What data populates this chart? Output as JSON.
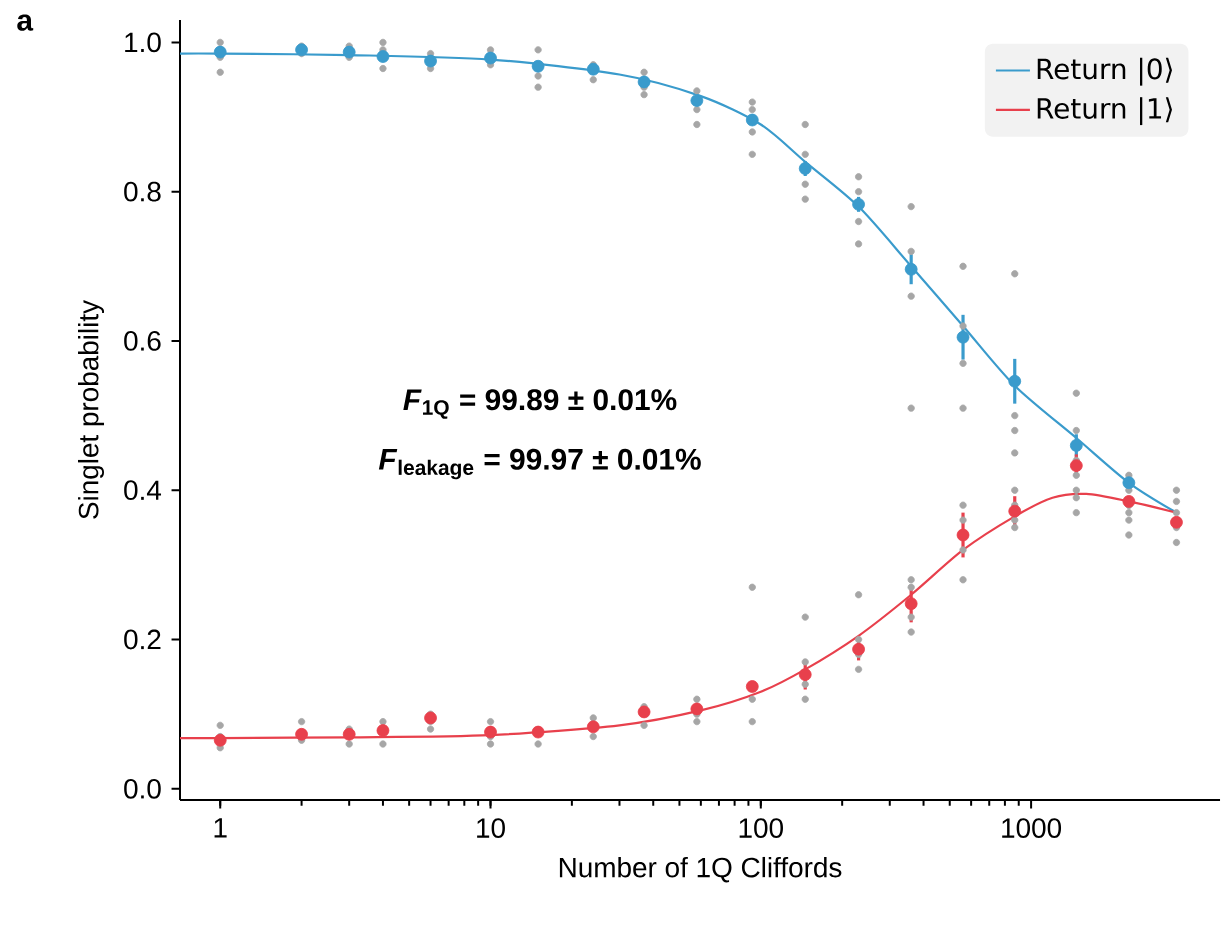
{
  "chart_data": {
    "type": "scatter",
    "xlabel": "Number of 1Q Cliffords",
    "ylabel": "Singlet probability",
    "annotations": [
      "a",
      "*F*$_{1Q}$ = 99.89 ± 0.01%",
      "*F*$_{leakage}$ = 99.97 ± 0.01%"
    ],
    "log": "x",
    "xlim": [
      0.71,
      5000
    ],
    "xticks": [
      1,
      10,
      100,
      1000
    ],
    "ylim": [
      -0.015,
      1.03
    ],
    "yticks": [
      {
        "value": 0,
        "label": "0.0"
      },
      {
        "value": 0.2,
        "label": "0.2"
      },
      {
        "value": 0.4,
        "label": "0.4"
      },
      {
        "value": 0.6,
        "label": "0.6"
      },
      {
        "value": 0.8,
        "label": "0.8"
      },
      {
        "value": 1.0,
        "label": "1.0"
      }
    ],
    "legend": "top right",
    "series": [
      {
        "color": "#a6a6a6",
        "marker": "circle",
        "x": [
          1,
          1,
          1,
          2,
          2,
          3,
          3,
          4,
          4,
          6,
          6,
          6,
          10,
          10,
          10,
          15,
          24,
          24,
          37,
          37,
          58,
          58,
          58,
          93,
          93,
          93,
          146,
          146,
          146,
          146,
          230,
          230,
          230,
          230,
          360,
          360,
          360,
          360,
          560,
          560,
          560,
          560,
          870,
          870,
          870,
          870,
          1470,
          1470,
          1470,
          2300,
          2300,
          2300,
          3450,
          3450,
          3450,
          3450,
          3450,
          1,
          1,
          1,
          2,
          2,
          3,
          3,
          4,
          4,
          4,
          6,
          6,
          10,
          10,
          15,
          15,
          15,
          24,
          24,
          37,
          37,
          37,
          58,
          58,
          58,
          93,
          93,
          93,
          93,
          146,
          146,
          146,
          146,
          230,
          230,
          230,
          230,
          360,
          360,
          360,
          360,
          560,
          560,
          560,
          560,
          870,
          870,
          870,
          870,
          1470,
          1470,
          1470,
          1470,
          2300,
          2300,
          2300,
          2300
        ],
        "values": [
          0.055,
          0.07,
          0.085,
          0.065,
          0.09,
          0.06,
          0.08,
          0.06,
          0.09,
          0.08,
          0.09,
          0.1,
          0.06,
          0.07,
          0.09,
          0.06,
          0.07,
          0.095,
          0.085,
          0.11,
          0.09,
          0.1,
          0.12,
          0.09,
          0.12,
          0.27,
          0.12,
          0.14,
          0.17,
          0.23,
          0.16,
          0.18,
          0.2,
          0.26,
          0.21,
          0.23,
          0.27,
          0.28,
          0.28,
          0.32,
          0.36,
          0.38,
          0.35,
          0.36,
          0.38,
          0.4,
          0.37,
          0.39,
          0.4,
          0.34,
          0.37,
          0.38,
          0.33,
          0.35,
          0.37,
          0.385,
          0.4,
          0.96,
          0.98,
          1.0,
          0.985,
          0.995,
          0.98,
          0.995,
          0.965,
          0.99,
          1.0,
          0.965,
          0.985,
          0.97,
          0.99,
          0.94,
          0.955,
          0.99,
          0.95,
          0.97,
          0.93,
          0.94,
          0.96,
          0.89,
          0.91,
          0.935,
          0.85,
          0.88,
          0.91,
          0.92,
          0.79,
          0.81,
          0.85,
          0.89,
          0.73,
          0.76,
          0.8,
          0.82,
          0.51,
          0.66,
          0.72,
          0.78,
          0.51,
          0.57,
          0.62,
          0.7,
          0.45,
          0.48,
          0.5,
          0.69,
          0.42,
          0.44,
          0.48,
          0.53,
          0.36,
          0.38,
          0.4,
          0.42
        ]
      },
      {
        "name": "Return |0⟩",
        "type": "line",
        "marker": "none",
        "color": "#3a9bcc",
        "x": [
          0.71,
          1,
          3,
          10,
          30,
          60,
          100,
          146,
          230,
          360,
          560,
          870,
          1470,
          2300,
          3450
        ],
        "values": [
          0.985,
          0.985,
          0.983,
          0.977,
          0.957,
          0.928,
          0.89,
          0.84,
          0.78,
          0.7,
          0.62,
          0.54,
          0.47,
          0.41,
          0.37
        ]
      },
      {
        "name": "Return |1⟩",
        "type": "line",
        "marker": "none",
        "color": "#e8404c",
        "x": [
          0.71,
          1,
          3,
          10,
          30,
          60,
          100,
          146,
          230,
          360,
          560,
          870,
          1200,
          1600,
          2300,
          3450
        ],
        "values": [
          0.068,
          0.068,
          0.069,
          0.072,
          0.085,
          0.105,
          0.13,
          0.16,
          0.205,
          0.26,
          0.32,
          0.365,
          0.39,
          0.395,
          0.385,
          0.37
        ]
      },
      {
        "color": "#3a9bcc",
        "marker": "circle",
        "x": [
          1,
          2,
          3,
          4,
          6,
          10,
          15,
          24,
          37,
          58,
          93,
          146,
          230,
          360,
          560,
          870,
          1470,
          2300
        ],
        "values": [
          0.987,
          0.99,
          0.987,
          0.981,
          0.975,
          0.979,
          0.968,
          0.964,
          0.947,
          0.922,
          0.896,
          0.831,
          0.783,
          0.696,
          0.605,
          0.546,
          0.46,
          0.41
        ],
        "errors": [
          null,
          null,
          null,
          null,
          null,
          null,
          null,
          null,
          null,
          null,
          null,
          0.01,
          0.01,
          0.02,
          0.03,
          0.03,
          0.015,
          0.01
        ]
      },
      {
        "color": "#e8404c",
        "marker": "circle",
        "x": [
          1,
          2,
          3,
          4,
          6,
          10,
          15,
          24,
          37,
          58,
          93,
          146,
          230,
          360,
          560,
          870,
          1470,
          2300,
          3450
        ],
        "values": [
          0.065,
          0.073,
          0.073,
          0.078,
          0.095,
          0.076,
          0.076,
          0.083,
          0.103,
          0.107,
          0.137,
          0.153,
          0.187,
          0.248,
          0.34,
          0.372,
          0.433,
          0.385,
          0.357
        ],
        "errors": [
          null,
          null,
          null,
          null,
          null,
          null,
          null,
          null,
          null,
          null,
          null,
          0.02,
          0.015,
          0.025,
          0.03,
          0.02,
          0.015,
          null,
          null
        ]
      }
    ]
  }
}
